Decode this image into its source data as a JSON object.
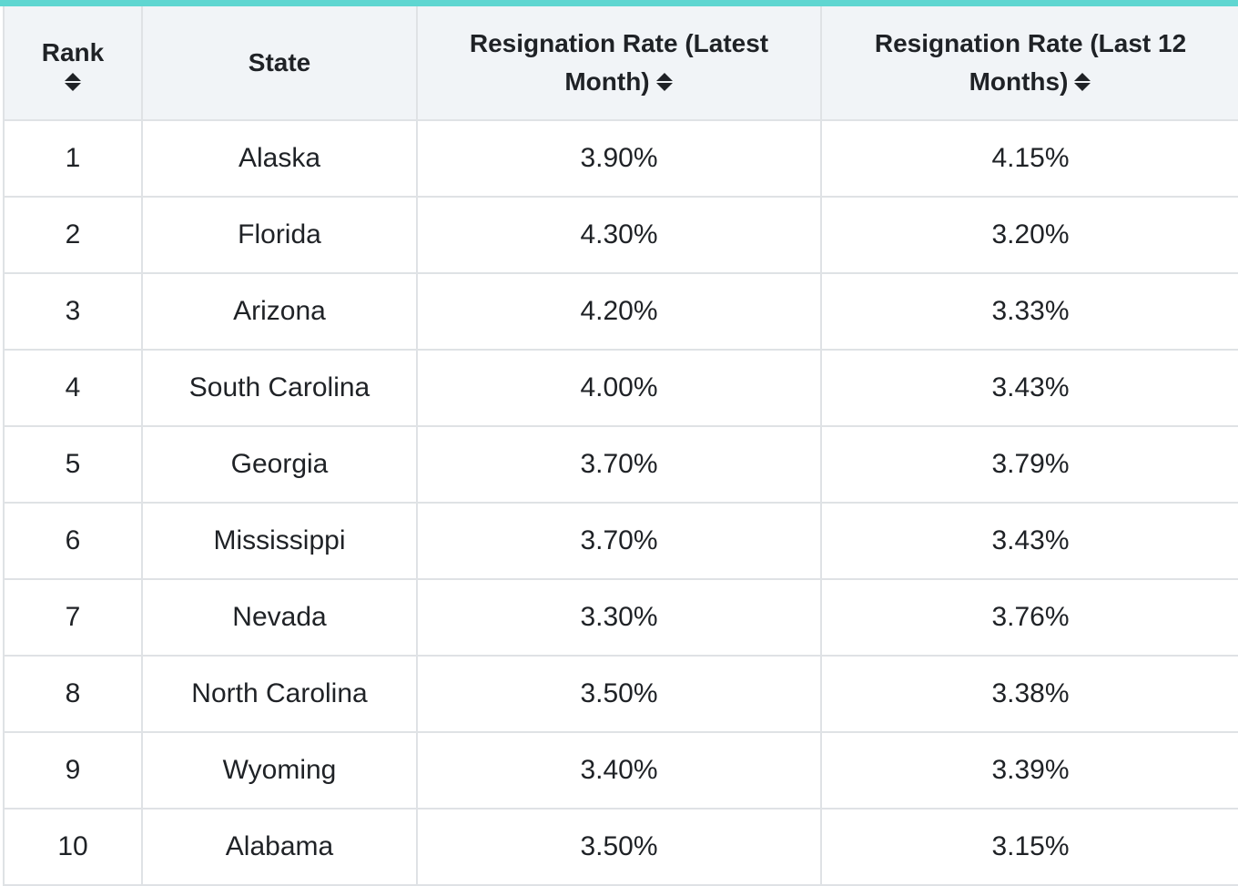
{
  "table": {
    "headers": [
      "Rank",
      "State",
      "Resignation Rate (Latest Month)",
      "Resignation Rate (Last 12 Months)"
    ],
    "rows": [
      [
        "1",
        "Alaska",
        "3.90%",
        "4.15%"
      ],
      [
        "2",
        "Florida",
        "4.30%",
        "3.20%"
      ],
      [
        "3",
        "Arizona",
        "4.20%",
        "3.33%"
      ],
      [
        "4",
        "South Carolina",
        "4.00%",
        "3.43%"
      ],
      [
        "5",
        "Georgia",
        "3.70%",
        "3.79%"
      ],
      [
        "6",
        "Mississippi",
        "3.70%",
        "3.43%"
      ],
      [
        "7",
        "Nevada",
        "3.30%",
        "3.76%"
      ],
      [
        "8",
        "North Carolina",
        "3.50%",
        "3.38%"
      ],
      [
        "9",
        "Wyoming",
        "3.40%",
        "3.39%"
      ],
      [
        "10",
        "Alabama",
        "3.50%",
        "3.15%"
      ]
    ]
  }
}
